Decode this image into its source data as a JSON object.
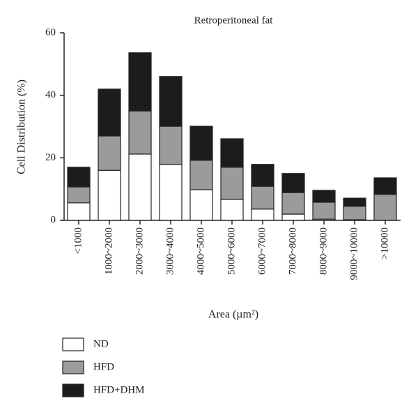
{
  "chart_data": {
    "type": "stacked_bar",
    "title": "Retroperitoneal fat",
    "y_label": "Cell Distribution (%)",
    "x_label": "Area (µm²)",
    "categories": [
      "<1000",
      "1000~2000",
      "2000~3000",
      "3000~4000",
      "4000~5000",
      "5000~6000",
      "6000~7000",
      "7000~8000",
      "8000~9000",
      "9000~10000",
      ">10000"
    ],
    "series": [
      {
        "name": "ND",
        "color": "#ffffff",
        "values": [
          5.6,
          16,
          21.2,
          17.9,
          9.8,
          6.7,
          3.6,
          2,
          0.4,
          0.2,
          0
        ]
      },
      {
        "name": "HFD",
        "color": "#9b9b9b",
        "values": [
          5.1,
          11,
          13.8,
          12.2,
          9.4,
          10.3,
          7.3,
          6.9,
          5.4,
          4.3,
          8.3
        ]
      },
      {
        "name": "HFD+DHM",
        "color": "#1c1c1c",
        "values": [
          6.3,
          15,
          18.6,
          15.9,
          10.9,
          9.1,
          7.0,
          6.1,
          3.8,
          2.6,
          5.3
        ]
      }
    ],
    "ylim": [
      0,
      60
    ],
    "yticks": [
      0,
      20,
      40,
      60
    ],
    "legend": "bottom-left"
  }
}
